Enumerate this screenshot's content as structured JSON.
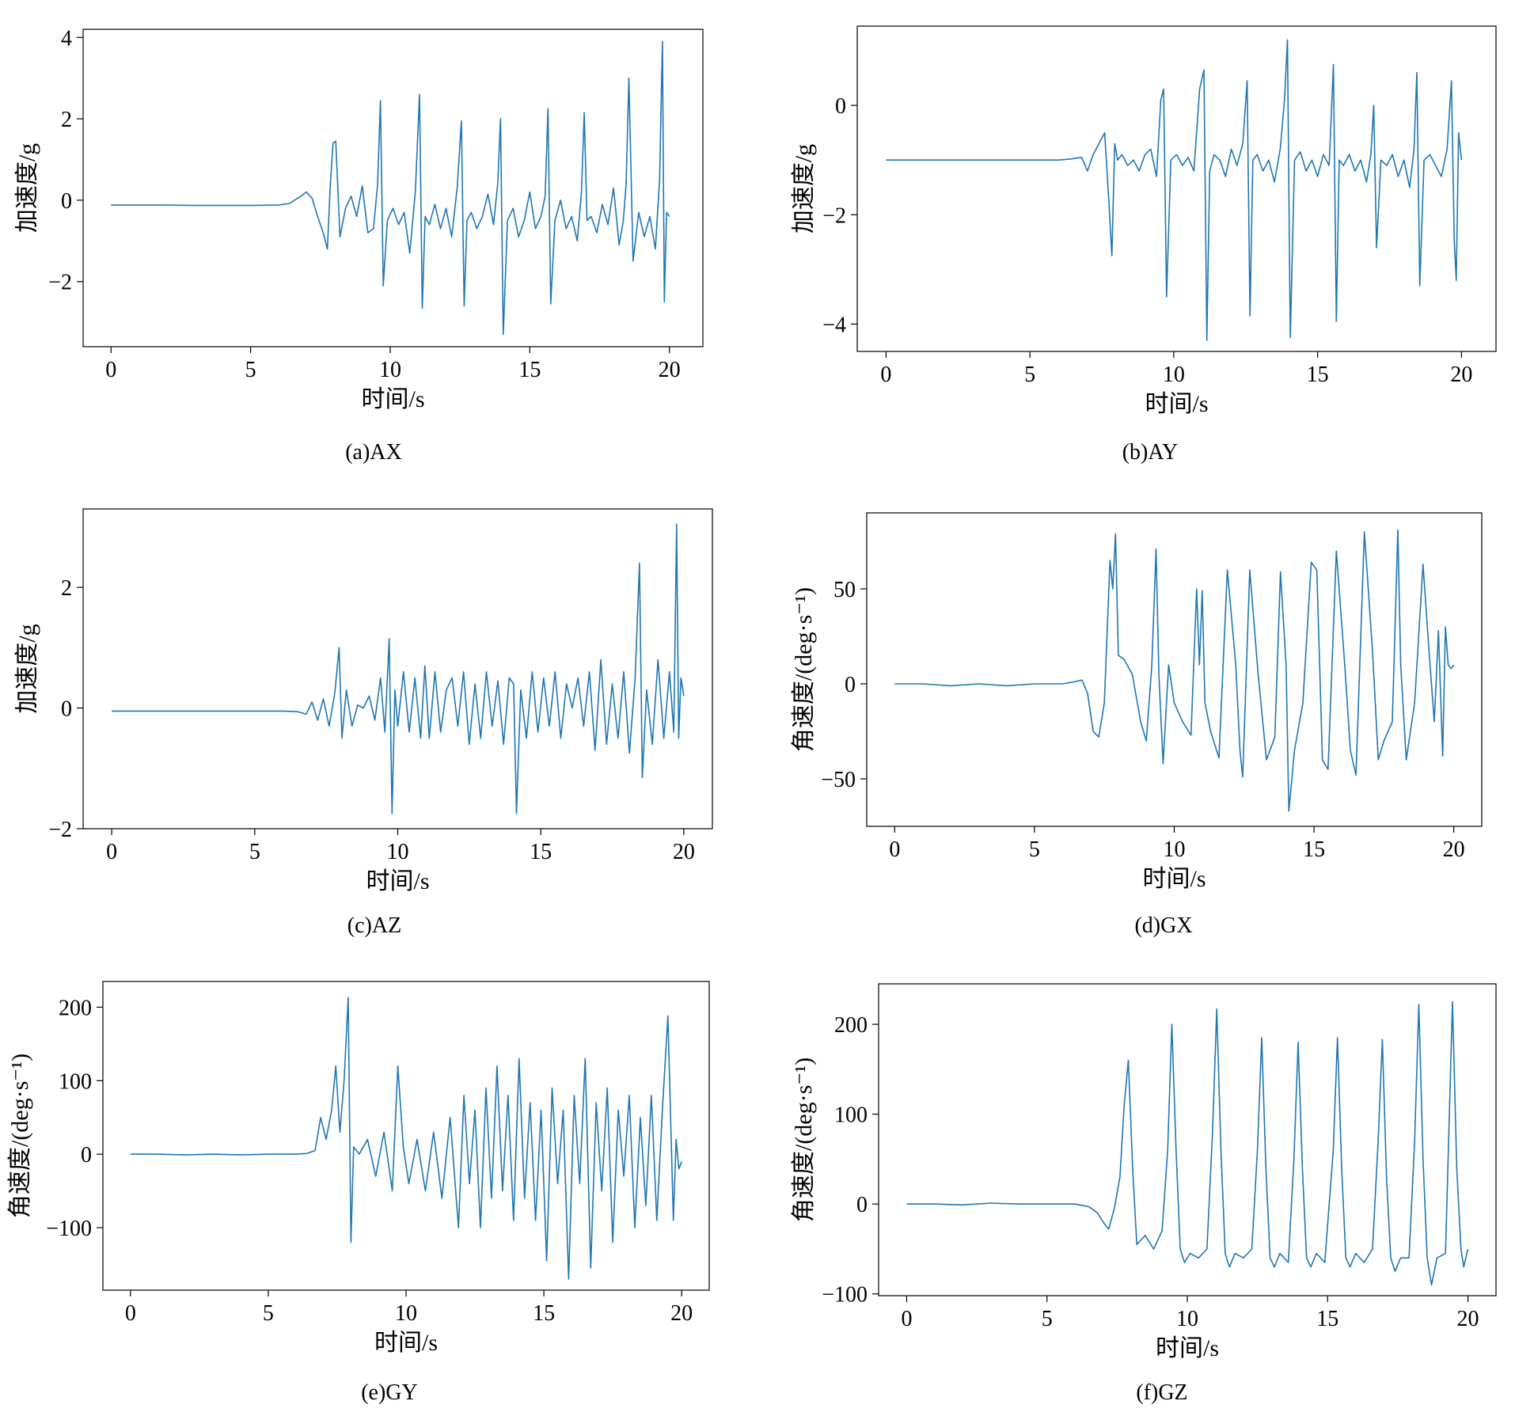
{
  "colors": {
    "line": "#1f77b4",
    "axis": "#000000",
    "background": "#ffffff"
  },
  "chart_data": [
    {
      "id": "ax",
      "type": "line",
      "caption": "(a)AX",
      "xlabel": "时间/s",
      "ylabel": "加速度/g",
      "xlim": [
        -1,
        21.2
      ],
      "ylim": [
        -3.6,
        4.2
      ],
      "xticks": [
        0,
        5,
        10,
        15,
        20
      ],
      "xtick_labels": [
        "0",
        "5",
        "10",
        "15",
        "20"
      ],
      "yticks": [
        -2,
        0,
        2,
        4
      ],
      "ytick_labels": [
        "−2",
        "0",
        "2",
        "4"
      ],
      "x": [
        0,
        1,
        2,
        3,
        4,
        5,
        6,
        6.4,
        6.8,
        7.0,
        7.2,
        7.4,
        7.6,
        7.75,
        7.85,
        7.95,
        8.05,
        8.2,
        8.4,
        8.6,
        8.8,
        9.0,
        9.2,
        9.4,
        9.55,
        9.65,
        9.75,
        9.9,
        10.1,
        10.3,
        10.5,
        10.7,
        10.9,
        11.05,
        11.15,
        11.25,
        11.4,
        11.6,
        11.8,
        12.0,
        12.2,
        12.4,
        12.55,
        12.65,
        12.75,
        12.9,
        13.1,
        13.3,
        13.5,
        13.7,
        13.85,
        13.95,
        14.05,
        14.2,
        14.4,
        14.6,
        14.8,
        15.0,
        15.2,
        15.4,
        15.55,
        15.65,
        15.75,
        15.9,
        16.1,
        16.3,
        16.5,
        16.7,
        16.85,
        16.95,
        17.05,
        17.2,
        17.4,
        17.6,
        17.8,
        18.0,
        18.2,
        18.35,
        18.45,
        18.55,
        18.7,
        18.9,
        19.1,
        19.3,
        19.5,
        19.65,
        19.75,
        19.82,
        19.9,
        20.0
      ],
      "y": [
        -0.12,
        -0.12,
        -0.12,
        -0.13,
        -0.13,
        -0.13,
        -0.12,
        -0.08,
        0.1,
        0.2,
        0.05,
        -0.4,
        -0.8,
        -1.2,
        0.3,
        1.4,
        1.45,
        -0.9,
        -0.2,
        0.1,
        -0.4,
        0.35,
        -0.8,
        -0.7,
        0.4,
        2.45,
        -2.1,
        -0.5,
        -0.2,
        -0.6,
        -0.3,
        -1.3,
        0.2,
        2.6,
        -2.65,
        -0.4,
        -0.6,
        -0.1,
        -0.7,
        -0.2,
        -0.9,
        0.3,
        1.95,
        -2.6,
        -0.5,
        -0.3,
        -0.7,
        -0.4,
        0.15,
        -0.6,
        0.4,
        2.0,
        -3.3,
        -0.5,
        -0.2,
        -0.9,
        -0.5,
        0.2,
        -0.7,
        -0.4,
        0.1,
        2.25,
        -2.55,
        -0.5,
        0.0,
        -0.7,
        -0.4,
        -1.0,
        0.2,
        2.15,
        -0.5,
        -0.4,
        -0.8,
        -0.1,
        -0.6,
        0.3,
        -1.1,
        -0.5,
        0.4,
        3.0,
        -1.5,
        -0.3,
        -0.9,
        -0.4,
        -1.2,
        0.5,
        3.9,
        -2.5,
        -0.3,
        -0.4
      ]
    },
    {
      "id": "ay",
      "type": "line",
      "caption": "(b)AY",
      "xlabel": "时间/s",
      "ylabel": "加速度/g",
      "xlim": [
        -1,
        21.2
      ],
      "ylim": [
        -4.5,
        1.45
      ],
      "xticks": [
        0,
        5,
        10,
        15,
        20
      ],
      "xtick_labels": [
        "0",
        "5",
        "10",
        "15",
        "20"
      ],
      "yticks": [
        -4,
        -2,
        0
      ],
      "ytick_labels": [
        "−4",
        "−2",
        "0"
      ],
      "x": [
        0,
        1,
        2,
        3,
        4,
        5,
        6,
        6.4,
        6.8,
        7.0,
        7.2,
        7.4,
        7.6,
        7.75,
        7.85,
        7.95,
        8.05,
        8.2,
        8.4,
        8.6,
        8.8,
        9.0,
        9.2,
        9.4,
        9.55,
        9.65,
        9.75,
        9.9,
        10.1,
        10.3,
        10.5,
        10.7,
        10.9,
        11.05,
        11.15,
        11.25,
        11.4,
        11.6,
        11.8,
        12.0,
        12.2,
        12.4,
        12.55,
        12.65,
        12.75,
        12.9,
        13.1,
        13.3,
        13.5,
        13.7,
        13.85,
        13.95,
        14.05,
        14.2,
        14.4,
        14.6,
        14.8,
        15.0,
        15.2,
        15.4,
        15.55,
        15.65,
        15.75,
        15.9,
        16.1,
        16.3,
        16.5,
        16.7,
        16.85,
        16.95,
        17.05,
        17.2,
        17.4,
        17.6,
        17.8,
        18.0,
        18.2,
        18.35,
        18.45,
        18.55,
        18.7,
        18.9,
        19.1,
        19.3,
        19.5,
        19.65,
        19.75,
        19.82,
        19.9,
        20.0
      ],
      "y": [
        -1.0,
        -1.0,
        -1.0,
        -1.0,
        -1.0,
        -1.0,
        -1.0,
        -0.98,
        -0.95,
        -1.2,
        -0.9,
        -0.7,
        -0.5,
        -1.8,
        -2.75,
        -0.7,
        -1.0,
        -0.9,
        -1.1,
        -1.0,
        -1.2,
        -0.9,
        -0.8,
        -1.3,
        0.1,
        0.3,
        -3.5,
        -1.0,
        -0.9,
        -1.1,
        -0.95,
        -1.2,
        0.3,
        0.65,
        -4.3,
        -1.2,
        -0.9,
        -1.0,
        -1.3,
        -0.8,
        -1.1,
        -0.7,
        0.45,
        -3.85,
        -1.0,
        -0.9,
        -1.2,
        -1.0,
        -1.4,
        -0.8,
        0.1,
        1.2,
        -4.25,
        -1.0,
        -0.85,
        -1.2,
        -1.0,
        -1.3,
        -0.9,
        -1.1,
        0.75,
        -3.95,
        -1.0,
        -1.1,
        -0.9,
        -1.2,
        -1.0,
        -1.4,
        -0.9,
        0.0,
        -2.6,
        -1.0,
        -1.1,
        -0.9,
        -1.3,
        -1.0,
        -1.5,
        -0.8,
        0.6,
        -3.3,
        -1.0,
        -0.9,
        -1.1,
        -1.3,
        -0.8,
        0.45,
        -2.5,
        -3.2,
        -0.5,
        -1.0
      ]
    },
    {
      "id": "az",
      "type": "line",
      "caption": "(c)AZ",
      "xlabel": "时间/s",
      "ylabel": "加速度/g",
      "xlim": [
        -1,
        21.0
      ],
      "ylim": [
        -2.0,
        3.3
      ],
      "xticks": [
        0,
        5,
        10,
        15,
        20
      ],
      "xtick_labels": [
        "0",
        "5",
        "10",
        "15",
        "20"
      ],
      "yticks": [
        -2,
        0,
        2
      ],
      "ytick_labels": [
        "−2",
        "0",
        "2"
      ],
      "x": [
        0,
        1,
        2,
        3,
        4,
        5,
        6,
        6.5,
        6.8,
        7.0,
        7.2,
        7.4,
        7.6,
        7.8,
        7.95,
        8.05,
        8.2,
        8.4,
        8.6,
        8.8,
        9.0,
        9.2,
        9.4,
        9.55,
        9.7,
        9.8,
        9.9,
        10.0,
        10.2,
        10.4,
        10.6,
        10.8,
        10.95,
        11.1,
        11.3,
        11.5,
        11.7,
        11.9,
        12.1,
        12.3,
        12.5,
        12.7,
        12.9,
        13.1,
        13.3,
        13.5,
        13.7,
        13.9,
        14.05,
        14.15,
        14.3,
        14.5,
        14.7,
        14.9,
        15.1,
        15.3,
        15.5,
        15.7,
        15.9,
        16.1,
        16.3,
        16.5,
        16.7,
        16.9,
        17.1,
        17.3,
        17.5,
        17.7,
        17.9,
        18.1,
        18.3,
        18.45,
        18.55,
        18.7,
        18.9,
        19.1,
        19.3,
        19.5,
        19.65,
        19.75,
        19.82,
        19.9,
        20.0
      ],
      "y": [
        -0.05,
        -0.05,
        -0.05,
        -0.05,
        -0.05,
        -0.05,
        -0.05,
        -0.06,
        -0.1,
        0.1,
        -0.2,
        0.15,
        -0.3,
        0.25,
        1.0,
        -0.5,
        0.3,
        -0.3,
        0.05,
        0.0,
        0.2,
        -0.2,
        0.5,
        -0.4,
        1.15,
        -1.75,
        0.3,
        -0.3,
        0.6,
        -0.4,
        0.5,
        -0.5,
        0.7,
        -0.5,
        0.6,
        -0.4,
        0.3,
        0.5,
        -0.3,
        0.6,
        -0.6,
        0.4,
        -0.5,
        0.6,
        -0.3,
        0.45,
        -0.6,
        0.5,
        0.4,
        -1.75,
        0.3,
        -0.5,
        0.6,
        -0.4,
        0.5,
        -0.3,
        0.6,
        -0.5,
        0.4,
        0.0,
        0.5,
        -0.3,
        0.6,
        -0.7,
        0.8,
        -0.6,
        0.4,
        -0.5,
        0.6,
        -0.75,
        0.5,
        2.4,
        -1.15,
        0.3,
        -0.6,
        0.8,
        -0.5,
        0.6,
        -0.4,
        3.05,
        -0.5,
        0.5,
        0.2
      ]
    },
    {
      "id": "gx",
      "type": "line",
      "caption": "(d)GX",
      "xlabel": "时间/s",
      "ylabel": "角速度/(deg·s⁻¹)",
      "xlim": [
        -1,
        21.0
      ],
      "ylim": [
        -75,
        90
      ],
      "xticks": [
        0,
        5,
        10,
        15,
        20
      ],
      "xtick_labels": [
        "0",
        "5",
        "10",
        "15",
        "20"
      ],
      "yticks": [
        -50,
        0,
        50
      ],
      "ytick_labels": [
        "−50",
        "0",
        "50"
      ],
      "x": [
        0,
        1,
        2,
        3,
        4,
        5,
        6,
        6.4,
        6.7,
        6.9,
        7.1,
        7.3,
        7.5,
        7.7,
        7.8,
        7.9,
        8.0,
        8.2,
        8.5,
        8.8,
        9.0,
        9.2,
        9.35,
        9.45,
        9.6,
        9.8,
        10.0,
        10.3,
        10.6,
        10.8,
        10.9,
        11.0,
        11.1,
        11.3,
        11.6,
        11.9,
        12.2,
        12.35,
        12.45,
        12.7,
        13.0,
        13.3,
        13.6,
        13.8,
        14.0,
        14.1,
        14.3,
        14.6,
        14.9,
        15.1,
        15.2,
        15.3,
        15.5,
        15.8,
        16.1,
        16.3,
        16.5,
        16.8,
        17.1,
        17.3,
        17.5,
        17.8,
        18.0,
        18.1,
        18.3,
        18.6,
        18.9,
        19.1,
        19.3,
        19.45,
        19.6,
        19.7,
        19.8,
        19.9,
        20.0
      ],
      "y": [
        0,
        0,
        -1,
        0,
        -1,
        0,
        0,
        1,
        2,
        -5,
        -25,
        -28,
        -10,
        65,
        50,
        79,
        15,
        13,
        5,
        -20,
        -30,
        10,
        71,
        5,
        -42,
        10,
        -10,
        -20,
        -27,
        50,
        10,
        49,
        -10,
        -25,
        -39,
        60,
        10,
        -35,
        -49,
        60,
        5,
        -40,
        -28,
        59,
        10,
        -67,
        -35,
        -10,
        64,
        60,
        10,
        -40,
        -45,
        70,
        10,
        -35,
        -48,
        80,
        15,
        -40,
        -30,
        -20,
        81,
        10,
        -40,
        -10,
        63,
        20,
        -20,
        28,
        -38,
        30,
        10,
        8,
        10
      ]
    },
    {
      "id": "gy",
      "type": "line",
      "caption": "(e)GY",
      "xlabel": "时间/s",
      "ylabel": "角速度/(deg·s⁻¹)",
      "xlim": [
        -1,
        21.0
      ],
      "ylim": [
        -185,
        235
      ],
      "xticks": [
        0,
        5,
        10,
        15,
        20
      ],
      "xtick_labels": [
        "0",
        "5",
        "10",
        "15",
        "20"
      ],
      "yticks": [
        -100,
        0,
        100,
        200
      ],
      "ytick_labels": [
        "−100",
        "0",
        "100",
        "200"
      ],
      "x": [
        0,
        1,
        2,
        3,
        4,
        5,
        6,
        6.4,
        6.7,
        6.9,
        7.1,
        7.3,
        7.45,
        7.6,
        7.75,
        7.9,
        8.0,
        8.1,
        8.3,
        8.6,
        8.9,
        9.2,
        9.5,
        9.7,
        9.9,
        10.1,
        10.4,
        10.7,
        11.0,
        11.3,
        11.6,
        11.9,
        12.1,
        12.3,
        12.5,
        12.7,
        12.9,
        13.1,
        13.3,
        13.5,
        13.7,
        13.9,
        14.1,
        14.3,
        14.5,
        14.7,
        14.9,
        15.1,
        15.3,
        15.5,
        15.7,
        15.9,
        16.1,
        16.3,
        16.5,
        16.7,
        16.9,
        17.1,
        17.3,
        17.5,
        17.7,
        17.9,
        18.1,
        18.3,
        18.5,
        18.7,
        18.9,
        19.1,
        19.3,
        19.5,
        19.7,
        19.8,
        19.9,
        20.0
      ],
      "y": [
        0,
        0,
        -1,
        0,
        -1,
        0,
        0,
        1,
        5,
        50,
        20,
        60,
        120,
        30,
        100,
        213,
        -120,
        10,
        0,
        20,
        -30,
        30,
        -50,
        120,
        10,
        -40,
        20,
        -50,
        30,
        -60,
        50,
        -100,
        80,
        -40,
        60,
        -100,
        90,
        -60,
        120,
        -50,
        80,
        -90,
        130,
        -60,
        70,
        -90,
        60,
        -145,
        90,
        -40,
        60,
        -170,
        80,
        -40,
        130,
        -155,
        70,
        -50,
        90,
        -120,
        60,
        -30,
        80,
        -100,
        50,
        -70,
        80,
        -90,
        60,
        188,
        -90,
        20,
        -20,
        -10
      ]
    },
    {
      "id": "gz",
      "type": "line",
      "caption": "(f)GZ",
      "xlabel": "时间/s",
      "ylabel": "角速度/(deg·s⁻¹)",
      "xlim": [
        -1,
        21.0
      ],
      "ylim": [
        -102,
        245
      ],
      "xticks": [
        0,
        5,
        10,
        15,
        20
      ],
      "xtick_labels": [
        "0",
        "5",
        "10",
        "15",
        "20"
      ],
      "yticks": [
        -100,
        0,
        100,
        200
      ],
      "ytick_labels": [
        "−100",
        "0",
        "100",
        "200"
      ],
      "x": [
        0,
        1,
        2,
        3,
        4,
        5,
        6,
        6.5,
        6.8,
        7.0,
        7.2,
        7.4,
        7.6,
        7.75,
        7.9,
        8.05,
        8.2,
        8.5,
        8.8,
        9.1,
        9.3,
        9.45,
        9.6,
        9.75,
        9.9,
        10.1,
        10.4,
        10.7,
        10.9,
        11.05,
        11.2,
        11.35,
        11.5,
        11.7,
        12.0,
        12.3,
        12.5,
        12.65,
        12.8,
        12.95,
        13.1,
        13.3,
        13.6,
        13.8,
        13.95,
        14.1,
        14.25,
        14.4,
        14.6,
        14.9,
        15.2,
        15.35,
        15.5,
        15.65,
        15.8,
        16.0,
        16.3,
        16.6,
        16.8,
        16.95,
        17.1,
        17.25,
        17.4,
        17.6,
        17.9,
        18.1,
        18.25,
        18.4,
        18.55,
        18.7,
        18.9,
        19.2,
        19.45,
        19.6,
        19.75,
        19.85,
        20.0
      ],
      "y": [
        0,
        0,
        -1,
        1,
        0,
        0,
        0,
        -3,
        -10,
        -20,
        -28,
        -5,
        30,
        110,
        160,
        40,
        -45,
        -35,
        -50,
        -30,
        60,
        200,
        60,
        -50,
        -65,
        -55,
        -60,
        -50,
        80,
        217,
        60,
        -55,
        -70,
        -55,
        -60,
        -50,
        60,
        185,
        40,
        -60,
        -70,
        -55,
        -65,
        50,
        180,
        40,
        -60,
        -70,
        -55,
        -65,
        60,
        185,
        40,
        -60,
        -70,
        -55,
        -65,
        -50,
        70,
        183,
        30,
        -60,
        -75,
        -60,
        -60,
        70,
        222,
        50,
        -60,
        -90,
        -60,
        -55,
        225,
        40,
        -50,
        -70,
        -50
      ]
    }
  ]
}
